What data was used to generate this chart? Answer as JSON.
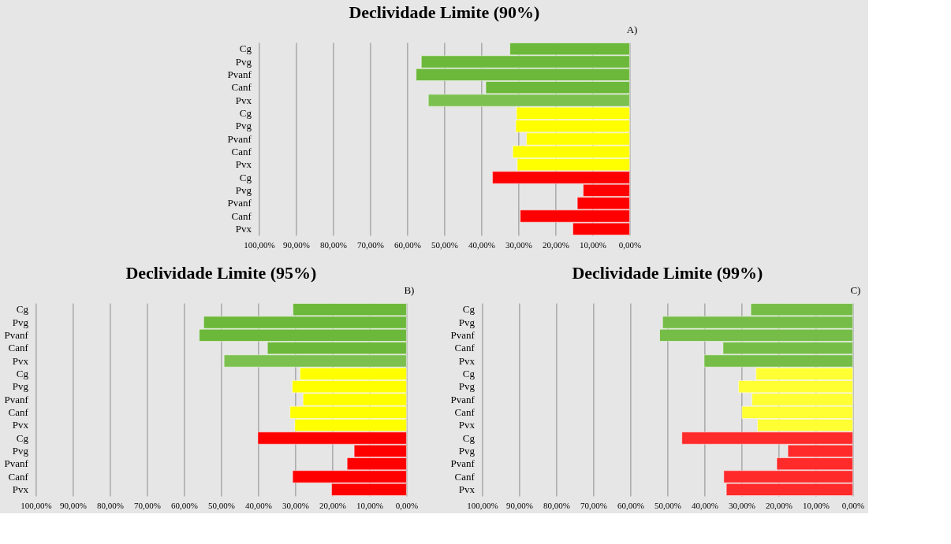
{
  "chart_data": [
    {
      "type": "bar",
      "orientation": "horizontal",
      "title": "Declividade Limite (90%)",
      "annotations": [
        "A)"
      ],
      "categories": [
        "Cg",
        "Pvg",
        "Pvanf",
        "Canf",
        "Pvx",
        "Cg",
        "Pvg",
        "Pvanf",
        "Canf",
        "Pvx",
        "Cg",
        "Pvg",
        "Pvanf",
        "Canf",
        "Pvx"
      ],
      "values": [
        32.3,
        56.2,
        57.6,
        38.8,
        54.3,
        30.5,
        30.7,
        27.8,
        31.5,
        30.3,
        37.0,
        12.5,
        14.1,
        29.5,
        15.3
      ],
      "colors": [
        "#6cb83a",
        "#6cb83a",
        "#6cb83a",
        "#6cb83a",
        "#7cc150",
        "#ffff00",
        "#ffff00",
        "#ffff00",
        "#ffff00",
        "#ffff00",
        "#ff0000",
        "#ff0000",
        "#ff0000",
        "#ff0000",
        "#ff0000"
      ],
      "xlim": [
        100,
        0
      ],
      "xticks": [
        {
          "value": 100,
          "label": "100,00%"
        },
        {
          "value": 90,
          "label": "90,00%"
        },
        {
          "value": 80,
          "label": "80,00%"
        },
        {
          "value": 70,
          "label": "70,00%"
        },
        {
          "value": 60,
          "label": "60,00%"
        },
        {
          "value": 50,
          "label": "50,00%"
        },
        {
          "value": 40,
          "label": "40,00%"
        },
        {
          "value": 30,
          "label": "30,00%"
        },
        {
          "value": 20,
          "label": "20,00%"
        },
        {
          "value": 10,
          "label": "10,00%"
        },
        {
          "value": 0,
          "label": "0,00%"
        }
      ],
      "grid": "x"
    },
    {
      "type": "bar",
      "orientation": "horizontal",
      "title": "Declividade Limite (95%)",
      "annotations": [
        "B)"
      ],
      "categories": [
        "Cg",
        "Pvg",
        "Pvanf",
        "Canf",
        "Pvx",
        "Cg",
        "Pvg",
        "Pvanf",
        "Canf",
        "Pvx",
        "Cg",
        "Pvg",
        "Pvanf",
        "Canf",
        "Pvx"
      ],
      "values": [
        30.6,
        54.7,
        55.9,
        37.5,
        49.2,
        28.7,
        30.8,
        27.9,
        31.4,
        30.1,
        40.1,
        14.1,
        16.0,
        30.7,
        20.2
      ],
      "colors": [
        "#6cb83a",
        "#6cb83a",
        "#6cb83a",
        "#6cb83a",
        "#7cc150",
        "#ffff00",
        "#ffff00",
        "#ffff00",
        "#ffff00",
        "#ffff00",
        "#ff0000",
        "#ff0000",
        "#ff0000",
        "#ff0000",
        "#ff0000"
      ],
      "xlim": [
        100,
        0
      ],
      "xticks": [
        {
          "value": 100,
          "label": "100,00%"
        },
        {
          "value": 90,
          "label": "90,00%"
        },
        {
          "value": 80,
          "label": "80,00%"
        },
        {
          "value": 70,
          "label": "70,00%"
        },
        {
          "value": 60,
          "label": "60,00%"
        },
        {
          "value": 50,
          "label": "50,00%"
        },
        {
          "value": 40,
          "label": "40,00%"
        },
        {
          "value": 30,
          "label": "30,00%"
        },
        {
          "value": 20,
          "label": "20,00%"
        },
        {
          "value": 10,
          "label": "10,00%"
        },
        {
          "value": 0,
          "label": "0,00%"
        }
      ],
      "grid": "x"
    },
    {
      "type": "bar",
      "orientation": "horizontal",
      "title": "Declividade Limite (99%)",
      "annotations": [
        "C)"
      ],
      "categories": [
        "Cg",
        "Pvg",
        "Pvanf",
        "Canf",
        "Pvx",
        "Cg",
        "Pvg",
        "Pvanf",
        "Canf",
        "Pvx",
        "Cg",
        "Pvg",
        "Pvanf",
        "Canf",
        "Pvx"
      ],
      "values": [
        27.5,
        51.3,
        52.1,
        35.0,
        40.1,
        26.1,
        30.8,
        27.2,
        29.9,
        25.7,
        46.1,
        17.5,
        20.5,
        34.8,
        34.1
      ],
      "colors": [
        "#76bd48",
        "#76bd48",
        "#76bd48",
        "#76bd48",
        "#76bd48",
        "#ffff33",
        "#ffff33",
        "#ffff33",
        "#ffff33",
        "#ffff33",
        "#ff2a2a",
        "#ff2a2a",
        "#ff2a2a",
        "#ff2a2a",
        "#ff2a2a"
      ],
      "xlim": [
        100,
        0
      ],
      "xticks": [
        {
          "value": 100,
          "label": "100,00%"
        },
        {
          "value": 90,
          "label": "90,00%"
        },
        {
          "value": 80,
          "label": "80,00%"
        },
        {
          "value": 70,
          "label": "70,00%"
        },
        {
          "value": 60,
          "label": "60,00%"
        },
        {
          "value": 50,
          "label": "50,00%"
        },
        {
          "value": 40,
          "label": "40,00%"
        },
        {
          "value": 30,
          "label": "30,00%"
        },
        {
          "value": 20,
          "label": "20,00%"
        },
        {
          "value": 10,
          "label": "10,00%"
        },
        {
          "value": 0,
          "label": "0,00%"
        }
      ],
      "grid": "x"
    }
  ]
}
